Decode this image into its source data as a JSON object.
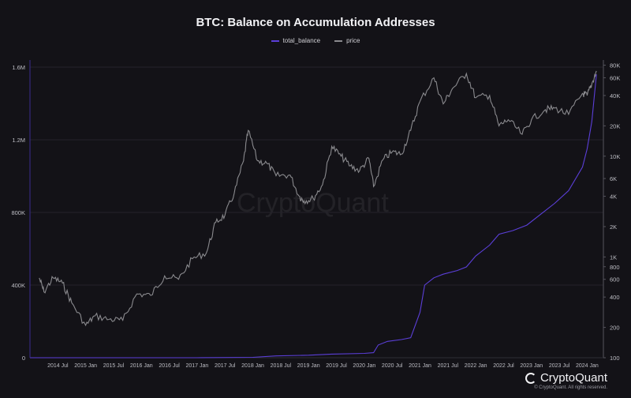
{
  "chart_data": {
    "type": "line",
    "title": "BTC: Balance on Accumulation Addresses",
    "legend_position": "top-center",
    "series": [
      {
        "name": "total_balance",
        "color": "#5b3fd8",
        "axis": "left",
        "points": [
          [
            "2014-01",
            0
          ],
          [
            "2015-01",
            0
          ],
          [
            "2016-01",
            0
          ],
          [
            "2017-01",
            0
          ],
          [
            "2018-01",
            2000
          ],
          [
            "2018-06",
            10000
          ],
          [
            "2019-01",
            14000
          ],
          [
            "2019-06",
            20000
          ],
          [
            "2020-01",
            24000
          ],
          [
            "2020-03",
            28000
          ],
          [
            "2020-04",
            70000
          ],
          [
            "2020-06",
            90000
          ],
          [
            "2020-09",
            100000
          ],
          [
            "2020-11",
            110000
          ],
          [
            "2021-01",
            250000
          ],
          [
            "2021-02",
            400000
          ],
          [
            "2021-04",
            440000
          ],
          [
            "2021-06",
            460000
          ],
          [
            "2021-09",
            480000
          ],
          [
            "2021-11",
            500000
          ],
          [
            "2022-01",
            560000
          ],
          [
            "2022-03",
            600000
          ],
          [
            "2022-04",
            620000
          ],
          [
            "2022-06",
            680000
          ],
          [
            "2022-09",
            700000
          ],
          [
            "2022-12",
            730000
          ],
          [
            "2023-03",
            790000
          ],
          [
            "2023-06",
            850000
          ],
          [
            "2023-09",
            920000
          ],
          [
            "2023-12",
            1050000
          ],
          [
            "2024-01",
            1150000
          ],
          [
            "2024-02",
            1300000
          ],
          [
            "2024-03",
            1560000
          ]
        ]
      },
      {
        "name": "price",
        "color": "#8a8a8e",
        "axis": "right",
        "points": [
          [
            "2014-03",
            620
          ],
          [
            "2014-04",
            450
          ],
          [
            "2014-06",
            620
          ],
          [
            "2014-08",
            550
          ],
          [
            "2014-10",
            350
          ],
          [
            "2015-01",
            210
          ],
          [
            "2015-03",
            260
          ],
          [
            "2015-06",
            240
          ],
          [
            "2015-09",
            235
          ],
          [
            "2015-12",
            430
          ],
          [
            "2016-03",
            415
          ],
          [
            "2016-06",
            650
          ],
          [
            "2016-09",
            600
          ],
          [
            "2016-12",
            960
          ],
          [
            "2017-03",
            1100
          ],
          [
            "2017-05",
            2200
          ],
          [
            "2017-07",
            2600
          ],
          [
            "2017-09",
            4300
          ],
          [
            "2017-11",
            9000
          ],
          [
            "2017-12",
            18000
          ],
          [
            "2018-02",
            9000
          ],
          [
            "2018-04",
            8500
          ],
          [
            "2018-06",
            6400
          ],
          [
            "2018-09",
            6500
          ],
          [
            "2018-11",
            4000
          ],
          [
            "2018-12",
            3600
          ],
          [
            "2019-02",
            3800
          ],
          [
            "2019-04",
            5200
          ],
          [
            "2019-06",
            12500
          ],
          [
            "2019-08",
            10000
          ],
          [
            "2019-10",
            8000
          ],
          [
            "2019-12",
            7200
          ],
          [
            "2020-02",
            9500
          ],
          [
            "2020-03",
            5000
          ],
          [
            "2020-05",
            9200
          ],
          [
            "2020-07",
            11000
          ],
          [
            "2020-09",
            10500
          ],
          [
            "2020-11",
            18000
          ],
          [
            "2021-01",
            35000
          ],
          [
            "2021-04",
            60000
          ],
          [
            "2021-06",
            33000
          ],
          [
            "2021-08",
            47000
          ],
          [
            "2021-11",
            66000
          ],
          [
            "2022-01",
            38000
          ],
          [
            "2022-04",
            40000
          ],
          [
            "2022-06",
            20000
          ],
          [
            "2022-08",
            23000
          ],
          [
            "2022-11",
            16500
          ],
          [
            "2023-01",
            23000
          ],
          [
            "2023-04",
            29000
          ],
          [
            "2023-06",
            30000
          ],
          [
            "2023-09",
            26000
          ],
          [
            "2023-12",
            42000
          ],
          [
            "2024-01",
            40000
          ],
          [
            "2024-02",
            52000
          ],
          [
            "2024-03",
            70000
          ]
        ]
      }
    ],
    "left_axis": {
      "ticks": [
        "0",
        "400K",
        "800K",
        "1.2M",
        "1.6M"
      ],
      "values": [
        0,
        400000,
        800000,
        1200000,
        1600000
      ]
    },
    "right_axis": {
      "scale": "log",
      "ticks": [
        "100",
        "200",
        "400",
        "600",
        "800",
        "1K",
        "2K",
        "4K",
        "6K",
        "10K",
        "20K",
        "40K",
        "60K",
        "80K"
      ],
      "values": [
        100,
        200,
        400,
        600,
        800,
        1000,
        2000,
        4000,
        6000,
        10000,
        20000,
        40000,
        60000,
        80000
      ]
    },
    "x_ticks": [
      "2014 Jul",
      "2015 Jan",
      "2015 Jul",
      "2016 Jan",
      "2016 Jul",
      "2017 Jan",
      "2017 Jul",
      "2018 Jan",
      "2018 Jul",
      "2019 Jan",
      "2019 Jul",
      "2020 Jan",
      "2020 Jul",
      "2021 Jan",
      "2021 Jul",
      "2022 Jan",
      "2022 Jul",
      "2023 Jan",
      "2023 Jul",
      "2024 Jan"
    ],
    "grid": true
  },
  "watermark": "CryptoQuant",
  "brand": "CryptoQuant",
  "copyright": "© CryptoQuant. All rights reserved."
}
